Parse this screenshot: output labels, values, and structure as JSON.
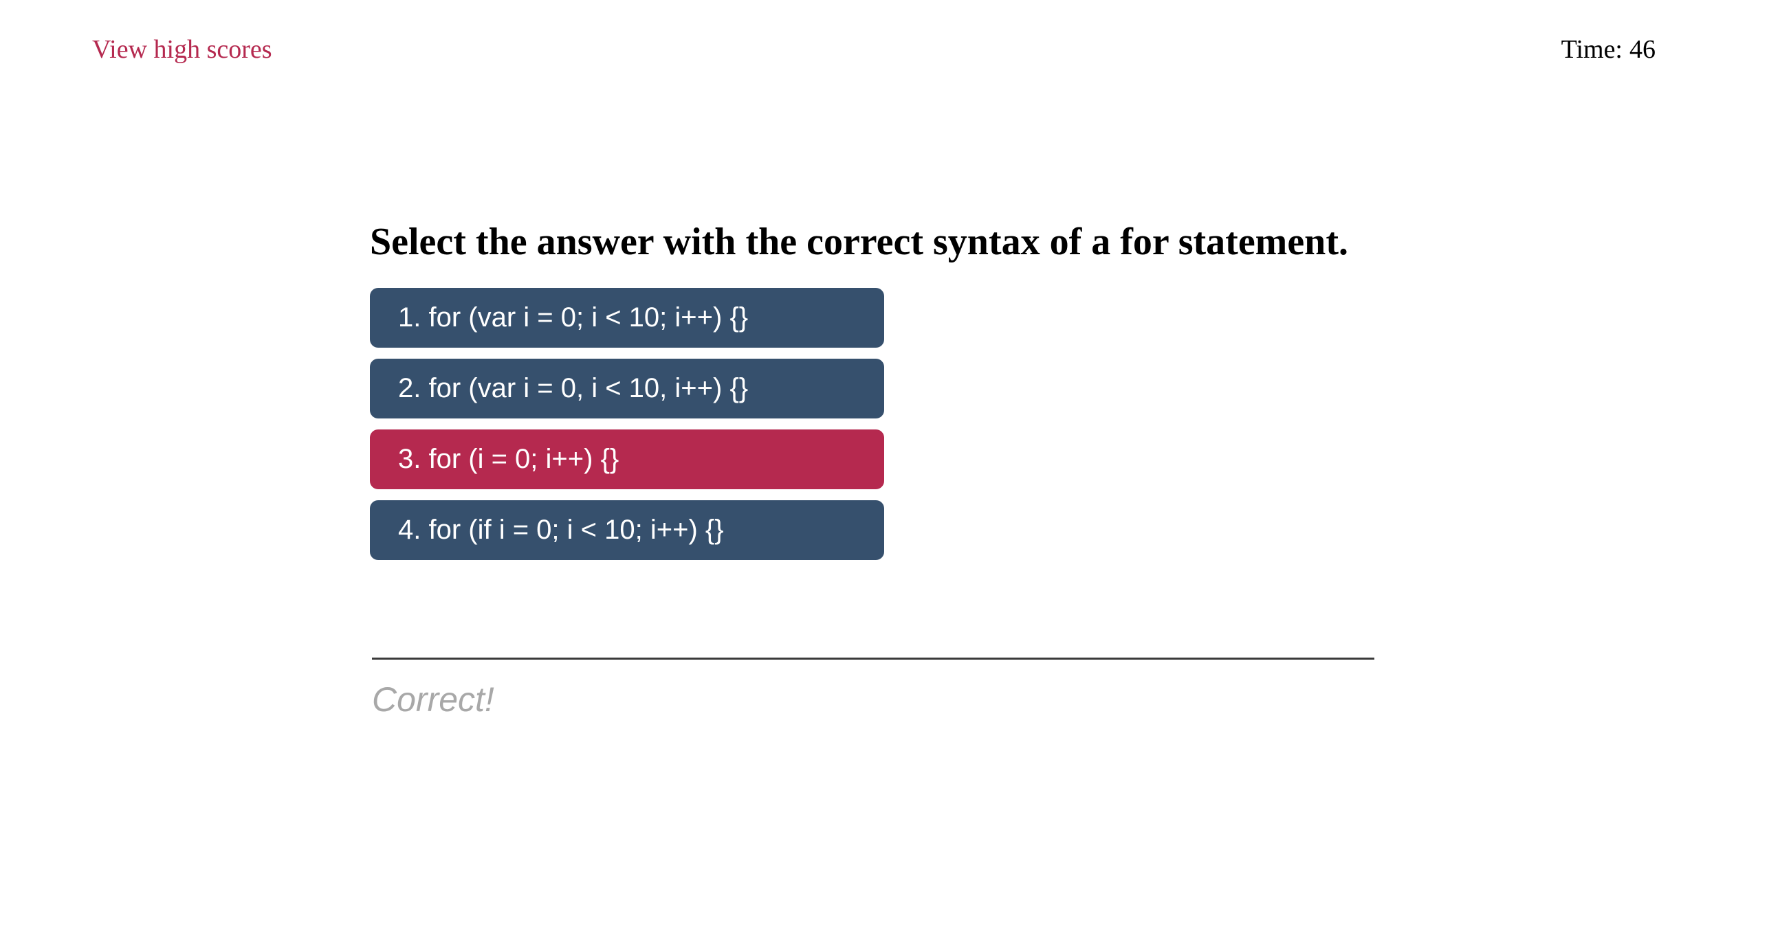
{
  "header": {
    "high_scores_link": "View high scores",
    "timer_label": "Time:",
    "timer_value": "46"
  },
  "quiz": {
    "question": "Select the answer with the correct syntax of a for statement.",
    "answers": [
      {
        "label": "1. for (var i = 0; i < 10; i++) {}",
        "selected": false
      },
      {
        "label": "2. for (var i = 0, i < 10, i++) {}",
        "selected": false
      },
      {
        "label": "3. for (i = 0; i++) {}",
        "selected": true
      },
      {
        "label": "4. for (if i = 0; i < 10; i++) {}",
        "selected": false
      }
    ],
    "feedback": "Correct!"
  },
  "colors": {
    "accent": "#b5294f",
    "button": "#36506d",
    "feedback_text": "#a8a8a8"
  }
}
